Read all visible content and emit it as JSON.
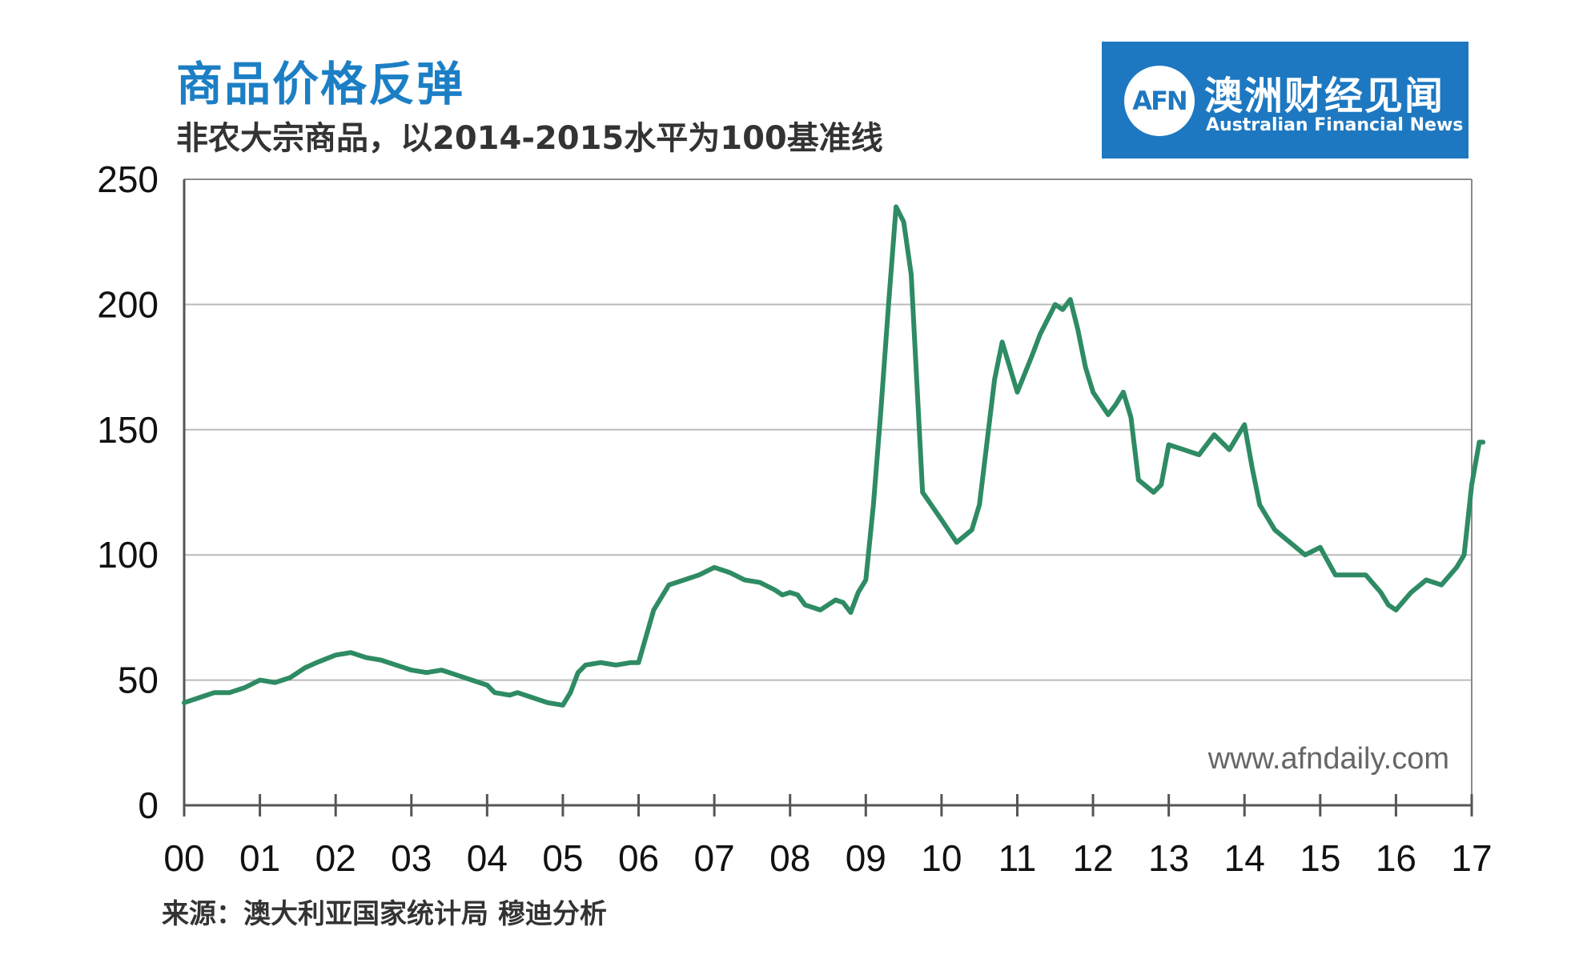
{
  "header": {
    "title": "商品价格反弹",
    "subtitle": "非农大宗商品，以2014-2015水平为100基准线"
  },
  "logo": {
    "mark": "AFN",
    "name_cn": "澳洲财经见闻",
    "name_en": "Australian Financial News"
  },
  "watermark": "www.afndaily.com",
  "source": "来源：澳大利亚国家统计局 穆迪分析",
  "colors": {
    "line": "#2e8b63",
    "brand": "#1d78c1",
    "title": "#1c7fc5",
    "grid": "#bbbbbb"
  },
  "chart_data": {
    "type": "line",
    "title": "商品价格反弹",
    "subtitle": "非农大宗商品，以2014-2015水平为100基准线",
    "xlabel": "",
    "ylabel": "",
    "xlim": [
      2000,
      2017
    ],
    "ylim": [
      0,
      250
    ],
    "yticks": [
      0,
      50,
      100,
      150,
      200,
      250
    ],
    "xticks": [
      2000,
      2001,
      2002,
      2003,
      2004,
      2005,
      2006,
      2007,
      2008,
      2009,
      2010,
      2011,
      2012,
      2013,
      2014,
      2015,
      2016,
      2017
    ],
    "xtick_labels": [
      "00",
      "01",
      "02",
      "03",
      "04",
      "05",
      "06",
      "07",
      "08",
      "09",
      "10",
      "11",
      "12",
      "13",
      "14",
      "15",
      "16",
      "17"
    ],
    "grid": true,
    "legend": "none",
    "series": [
      {
        "x": [
          2000.0,
          2000.2,
          2000.4,
          2000.6,
          2000.8,
          2001.0,
          2001.2,
          2001.4,
          2001.6,
          2001.75,
          2002.0,
          2002.2,
          2002.4,
          2002.6,
          2002.8,
          2003.0,
          2003.2,
          2003.4,
          2003.6,
          2003.8,
          2004.0,
          2004.1,
          2004.3,
          2004.4,
          2004.6,
          2004.8,
          2005.0,
          2005.1,
          2005.2,
          2005.3,
          2005.5,
          2005.7,
          2005.9,
          2006.0,
          2006.2,
          2006.4,
          2006.6,
          2006.8,
          2007.0,
          2007.2,
          2007.4,
          2007.6,
          2007.8,
          2007.9,
          2008.0,
          2008.1,
          2008.2,
          2008.3,
          2008.4,
          2008.5,
          2008.6,
          2008.7,
          2008.8,
          2008.9,
          2009.0,
          2009.1,
          2009.2,
          2009.3,
          2009.4,
          2009.5,
          2009.6,
          2009.75,
          2010.0,
          2010.2,
          2010.4,
          2010.5,
          2010.7,
          2010.8,
          2011.0,
          2011.2,
          2011.3,
          2011.5,
          2011.6,
          2011.7,
          2011.8,
          2011.9,
          2012.0,
          2012.2,
          2012.3,
          2012.4,
          2012.5,
          2012.6,
          2012.8,
          2012.9,
          2013.0,
          2013.2,
          2013.4,
          2013.6,
          2013.8,
          2014.0,
          2014.1,
          2014.2,
          2014.4,
          2014.6,
          2014.8,
          2015.0,
          2015.2,
          2015.4,
          2015.6,
          2015.8,
          2015.9,
          2016.0,
          2016.2,
          2016.4,
          2016.6,
          2016.8,
          2016.9,
          2017.0,
          2017.1,
          2017.15
        ],
        "y": [
          41,
          43,
          45,
          45,
          47,
          50,
          49,
          51,
          55,
          57,
          60,
          61,
          59,
          58,
          56,
          54,
          53,
          54,
          52,
          50,
          48,
          45,
          44,
          45,
          43,
          41,
          40,
          45,
          53,
          56,
          57,
          56,
          57,
          57,
          78,
          88,
          90,
          92,
          95,
          93,
          90,
          89,
          86,
          84,
          85,
          84,
          80,
          79,
          78,
          80,
          82,
          81,
          77,
          85,
          90,
          120,
          158,
          200,
          239,
          233,
          212,
          125,
          114,
          105,
          110,
          120,
          170,
          185,
          165,
          180,
          188,
          200,
          198,
          202,
          190,
          175,
          165,
          156,
          160,
          165,
          155,
          130,
          125,
          128,
          144,
          142,
          140,
          148,
          142,
          152,
          135,
          120,
          110,
          105,
          100,
          103,
          92,
          92,
          92,
          85,
          80,
          78,
          85,
          90,
          88,
          95,
          100,
          128,
          145,
          145
        ]
      }
    ]
  }
}
